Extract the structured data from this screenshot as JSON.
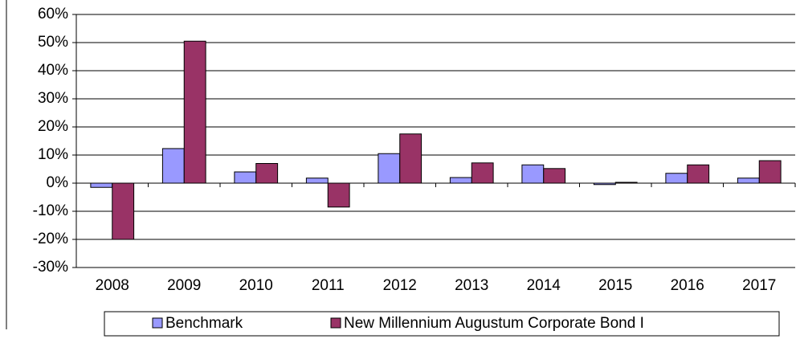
{
  "chart_data": {
    "type": "bar",
    "categories": [
      "2008",
      "2009",
      "2010",
      "2011",
      "2012",
      "2013",
      "2014",
      "2015",
      "2016",
      "2017"
    ],
    "series": [
      {
        "name": "Benchmark",
        "color": "#9999ff",
        "values": [
          -1.5,
          12.3,
          4,
          1.8,
          10.5,
          2,
          6.5,
          -0.5,
          3.5,
          1.8
        ]
      },
      {
        "name": "New Millennium Augustum Corporate Bond I",
        "color": "#993366",
        "values": [
          -20,
          50.5,
          7,
          -8.5,
          17.5,
          7.2,
          5.2,
          0.3,
          6.5,
          8
        ]
      }
    ],
    "ylim": [
      -30,
      60
    ],
    "yticks": [
      {
        "value": -30,
        "label": "-30%"
      },
      {
        "value": -20,
        "label": "-20%"
      },
      {
        "value": -10,
        "label": "-10%"
      },
      {
        "value": 0,
        "label": "0%"
      },
      {
        "value": 10,
        "label": "10%"
      },
      {
        "value": 20,
        "label": "20%"
      },
      {
        "value": 30,
        "label": "30%"
      },
      {
        "value": 40,
        "label": "40%"
      },
      {
        "value": 50,
        "label": "50%"
      },
      {
        "value": 60,
        "label": "60%"
      }
    ],
    "grid": true,
    "legend": "bottom"
  }
}
